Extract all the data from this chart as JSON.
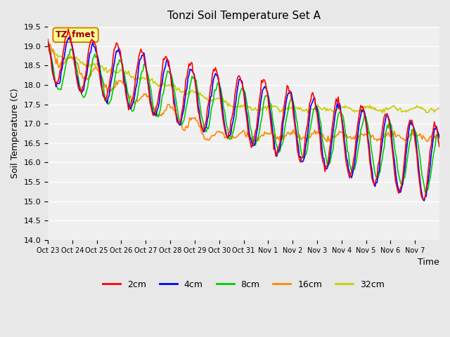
{
  "title": "Tonzi Soil Temperature Set A",
  "xlabel": "Time",
  "ylabel": "Soil Temperature (C)",
  "ylim": [
    14.0,
    19.5
  ],
  "yticks": [
    14.0,
    14.5,
    15.0,
    15.5,
    16.0,
    16.5,
    17.0,
    17.5,
    18.0,
    18.5,
    19.0,
    19.5
  ],
  "xtick_labels": [
    "Oct 23",
    "Oct 24",
    "Oct 25",
    "Oct 26",
    "Oct 27",
    "Oct 28",
    "Oct 29",
    "Oct 30",
    "Oct 31",
    "Nov 1",
    "Nov 2",
    "Nov 3",
    "Nov 4",
    "Nov 5",
    "Nov 6",
    "Nov 7"
  ],
  "series_labels": [
    "2cm",
    "4cm",
    "8cm",
    "16cm",
    "32cm"
  ],
  "series_colors": [
    "#ff0000",
    "#0000ff",
    "#00cc00",
    "#ff8800",
    "#cccc00"
  ],
  "line_width": 1.2,
  "background_color": "#e8e8e8",
  "plot_bg_color": "#f0f0f0",
  "annotation_text": "TZ_fmet",
  "annotation_bg": "#ffff99",
  "annotation_border": "#cc8800"
}
